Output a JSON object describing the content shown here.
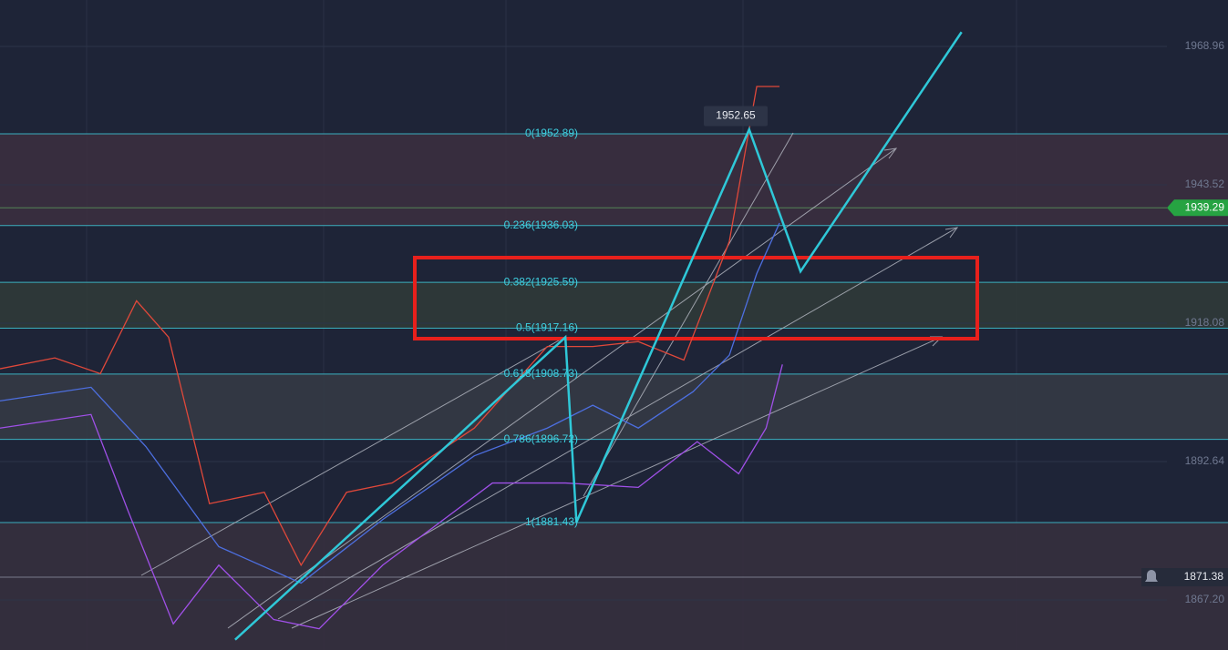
{
  "chart_data": {
    "type": "line",
    "xlim": [
      0,
      200
    ],
    "ylim": [
      1858.0,
      1977.5
    ],
    "yticks": [
      1968.96,
      1943.52,
      1918.08,
      1892.64,
      {
        "value": 1867.2,
        "label": "1867.20"
      }
    ],
    "fib_levels": [
      {
        "label": "0(1952.89)",
        "value": 1952.89
      },
      {
        "label": "0.236(1936.03)",
        "value": 1936.03
      },
      {
        "label": "0.382(1925.59)",
        "value": 1925.59
      },
      {
        "label": "0.5(1917.16)",
        "value": 1917.16
      },
      {
        "label": "0.618(1908.73)",
        "value": 1908.73
      },
      {
        "label": "0.786(1896.72)",
        "value": 1896.72
      },
      {
        "label": "1(1881.43)",
        "value": 1881.43
      }
    ],
    "high_label": 1952.65,
    "current_price": 1939.29,
    "alert_price": 1871.38,
    "series": [
      {
        "color": "#e0483a",
        "x": [
          0,
          9.4,
          17.2,
          23.4,
          28.9,
          35.9,
          45.3,
          51.6,
          59.4,
          67.2,
          81.3,
          93.8,
          101.6,
          109.4,
          117.2,
          125,
          129.7,
          133.6
        ],
        "values": [
          1909.7,
          1911.7,
          1908.8,
          1922.2,
          1915.5,
          1884.9,
          1887.0,
          1873.6,
          1887.0,
          1888.7,
          1898.8,
          1913.8,
          1913.8,
          1914.7,
          1911.3,
          1933.1,
          1961.6,
          1961.6
        ]
      },
      {
        "color": "#4d6fe0",
        "x": [
          0,
          15.6,
          25,
          37.5,
          51.6,
          65.6,
          81.3,
          93.8,
          101.6,
          109.4,
          118.8,
          125,
          129.7,
          133.6
        ],
        "values": [
          1903.8,
          1906.3,
          1895.4,
          1877.0,
          1870.3,
          1882.0,
          1893.7,
          1898.8,
          1903.0,
          1898.8,
          1905.5,
          1912.2,
          1927.2,
          1936.5
        ]
      },
      {
        "color": "#a050e8",
        "x": [
          0,
          15.6,
          21.9,
          29.7,
          37.5,
          46.9,
          54.7,
          65.6,
          84.4,
          96.9,
          109.4,
          119.5,
          126.6,
          131.3,
          134.1
        ],
        "values": [
          1898.8,
          1901.3,
          1883.7,
          1862.8,
          1873.6,
          1863.6,
          1861.9,
          1873.6,
          1888.7,
          1888.7,
          1887.9,
          1896.3,
          1890.4,
          1898.8,
          1910.5
        ]
      },
      {
        "color": "#2fc8d8",
        "x": [
          40.3,
          96.9,
          98.8,
          128.4,
          137.2,
          164.8
        ],
        "values": [
          1859.9,
          1915.5,
          1881.5,
          1953.7,
          1927.6,
          1971.6
        ]
      }
    ]
  }
}
